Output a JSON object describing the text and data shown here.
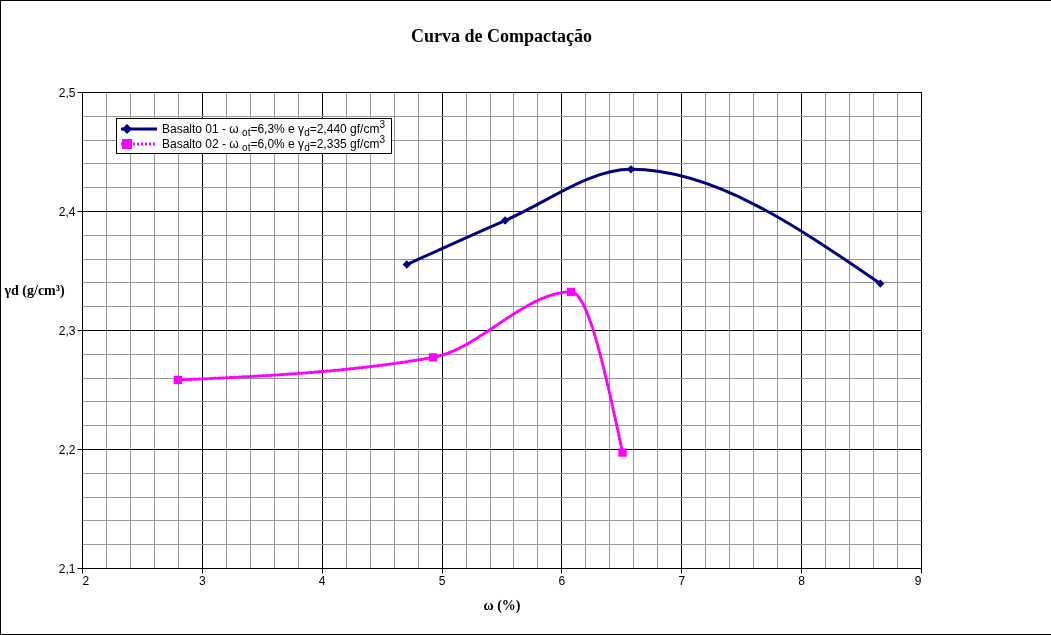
{
  "chart_data": {
    "type": "line",
    "title": "Curva de Compactação",
    "xlabel": "ω (%)",
    "ylabel": "γd (g/cm³)",
    "xlim": [
      2,
      9
    ],
    "ylim": [
      2.1,
      2.5
    ],
    "xticks": [
      2,
      {
        "value": 2.2,
        "label": null
      },
      {
        "value": 2.4,
        "label": null
      },
      {
        "value": 2.6,
        "label": null
      },
      {
        "value": 2.8,
        "label": null
      },
      3,
      {
        "value": 3.2,
        "label": null
      },
      {
        "value": 3.4,
        "label": null
      },
      {
        "value": 3.6,
        "label": null
      },
      {
        "value": 3.8,
        "label": null
      },
      4,
      {
        "value": 4.2,
        "label": null
      },
      {
        "value": 4.4,
        "label": null
      },
      {
        "value": 4.6,
        "label": null
      },
      {
        "value": 4.8,
        "label": null
      },
      5,
      {
        "value": 5.2,
        "label": null
      },
      {
        "value": 5.4,
        "label": null
      },
      {
        "value": 5.6,
        "label": null
      },
      {
        "value": 5.8,
        "label": null
      },
      6,
      {
        "value": 6.2,
        "label": null
      },
      {
        "value": 6.4,
        "label": null
      },
      {
        "value": 6.6,
        "label": null
      },
      {
        "value": 6.8,
        "label": null
      },
      7,
      {
        "value": 7.2,
        "label": null
      },
      {
        "value": 7.4,
        "label": null
      },
      {
        "value": 7.6,
        "label": null
      },
      {
        "value": 7.8,
        "label": null
      },
      8,
      {
        "value": 8.2,
        "label": null
      },
      {
        "value": 8.4,
        "label": null
      },
      {
        "value": 8.6,
        "label": null
      },
      {
        "value": 8.8,
        "label": null
      },
      9
    ],
    "yticks": [
      {
        "value": 2.1,
        "label": "2,1"
      },
      {
        "value": 2.12,
        "label": null
      },
      {
        "value": 2.14,
        "label": null
      },
      {
        "value": 2.16,
        "label": null
      },
      {
        "value": 2.18,
        "label": null
      },
      {
        "value": 2.2,
        "label": "2,2"
      },
      {
        "value": 2.22,
        "label": null
      },
      {
        "value": 2.24,
        "label": null
      },
      {
        "value": 2.26,
        "label": null
      },
      {
        "value": 2.28,
        "label": null
      },
      {
        "value": 2.3,
        "label": "2,3"
      },
      {
        "value": 2.32,
        "label": null
      },
      {
        "value": 2.34,
        "label": null
      },
      {
        "value": 2.36,
        "label": null
      },
      {
        "value": 2.38,
        "label": null
      },
      {
        "value": 2.4,
        "label": "2,4"
      },
      {
        "value": 2.42,
        "label": null
      },
      {
        "value": 2.44,
        "label": null
      },
      {
        "value": 2.46,
        "label": null
      },
      {
        "value": 2.48,
        "label": null
      },
      {
        "value": 2.5,
        "label": "2,5"
      }
    ],
    "grid": true,
    "legend": "top left",
    "series": [
      {
        "name": "Basalto 01 - ω $_{ot}$=6,3% e γ$_{d}$=2,440 gf/cm$^{3}$",
        "color": "#000080",
        "marker": "diamond",
        "line_style": "solid",
        "x": [
          4.71,
          5.53,
          6.58,
          8.66
        ],
        "values": [
          2.355,
          2.392,
          2.435,
          2.339
        ]
      },
      {
        "name": "Basalto 02 - ω $_{ot}$=6,0% e γ$_{d}$=2,335 gf/cm$^{3}$",
        "color": "#ff00ff",
        "marker": "square",
        "line_style": "dotted",
        "x": [
          2.8,
          4.93,
          6.08,
          6.51
        ],
        "values": [
          2.258,
          2.277,
          2.332,
          2.197
        ]
      }
    ]
  }
}
